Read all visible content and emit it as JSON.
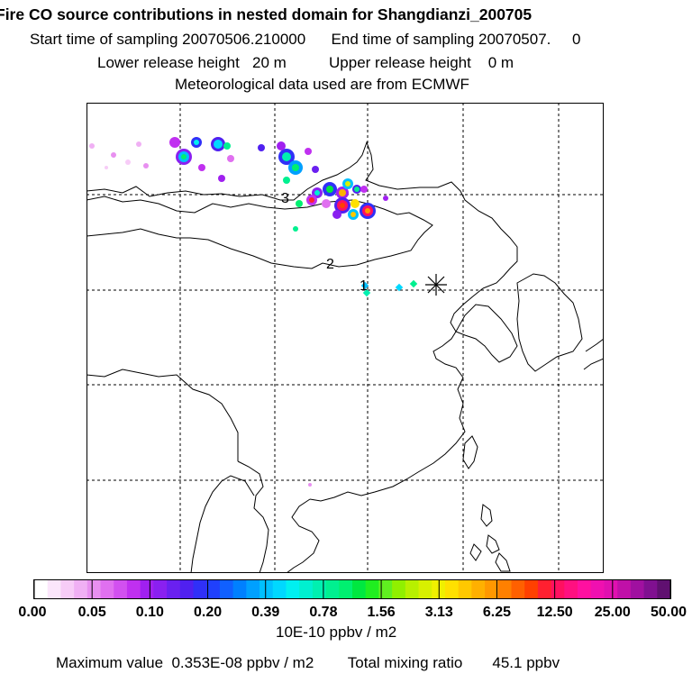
{
  "header": {
    "title": "Fire CO source contributions in nested domain for Shangdianzi_200705",
    "sampling_line": "Start time of sampling 20070506.210000      End time of sampling 20070507.     0",
    "release_line": "Lower release height   20 m          Upper release height    0 m",
    "met_line": "Meteorological data used are from ECMWF"
  },
  "map": {
    "annotations": [
      "3",
      "2",
      "1"
    ],
    "receptor_marker": "asterisk-icon"
  },
  "colorbar": {
    "tick_labels": [
      "0.00",
      "0.05",
      "0.10",
      "0.20",
      "0.39",
      "0.78",
      "1.56",
      "3.13",
      "6.25",
      "12.50",
      "25.00",
      "50.00"
    ],
    "colors": [
      "#ffffff",
      "#fbe6fb",
      "#f7ccf7",
      "#f0b0f4",
      "#e890f0",
      "#e070f0",
      "#d250f0",
      "#c030f0",
      "#a020f0",
      "#8a20f0",
      "#6a20f0",
      "#5020f0",
      "#3030f8",
      "#2040fc",
      "#1060ff",
      "#0080ff",
      "#00a0ff",
      "#00c0ff",
      "#00d8ff",
      "#00f0f0",
      "#00f0d0",
      "#00f0b0",
      "#00f090",
      "#00f070",
      "#00e840",
      "#20ee20",
      "#60f020",
      "#90f000",
      "#b8f000",
      "#d8f000",
      "#f0f000",
      "#ffe000",
      "#ffc800",
      "#ffb000",
      "#ff9800",
      "#ff8000",
      "#ff6000",
      "#ff4000",
      "#ff2030",
      "#ff1060",
      "#ff1080",
      "#ff10a0",
      "#f010b0",
      "#e010b0",
      "#c010a8",
      "#a010a0",
      "#801090",
      "#601070"
    ]
  },
  "footer": {
    "units": "10E-10 ppbv / m2",
    "stats": "Maximum value  0.353E-08 ppbv / m2        Total mixing ratio       45.1 ppbv"
  }
}
